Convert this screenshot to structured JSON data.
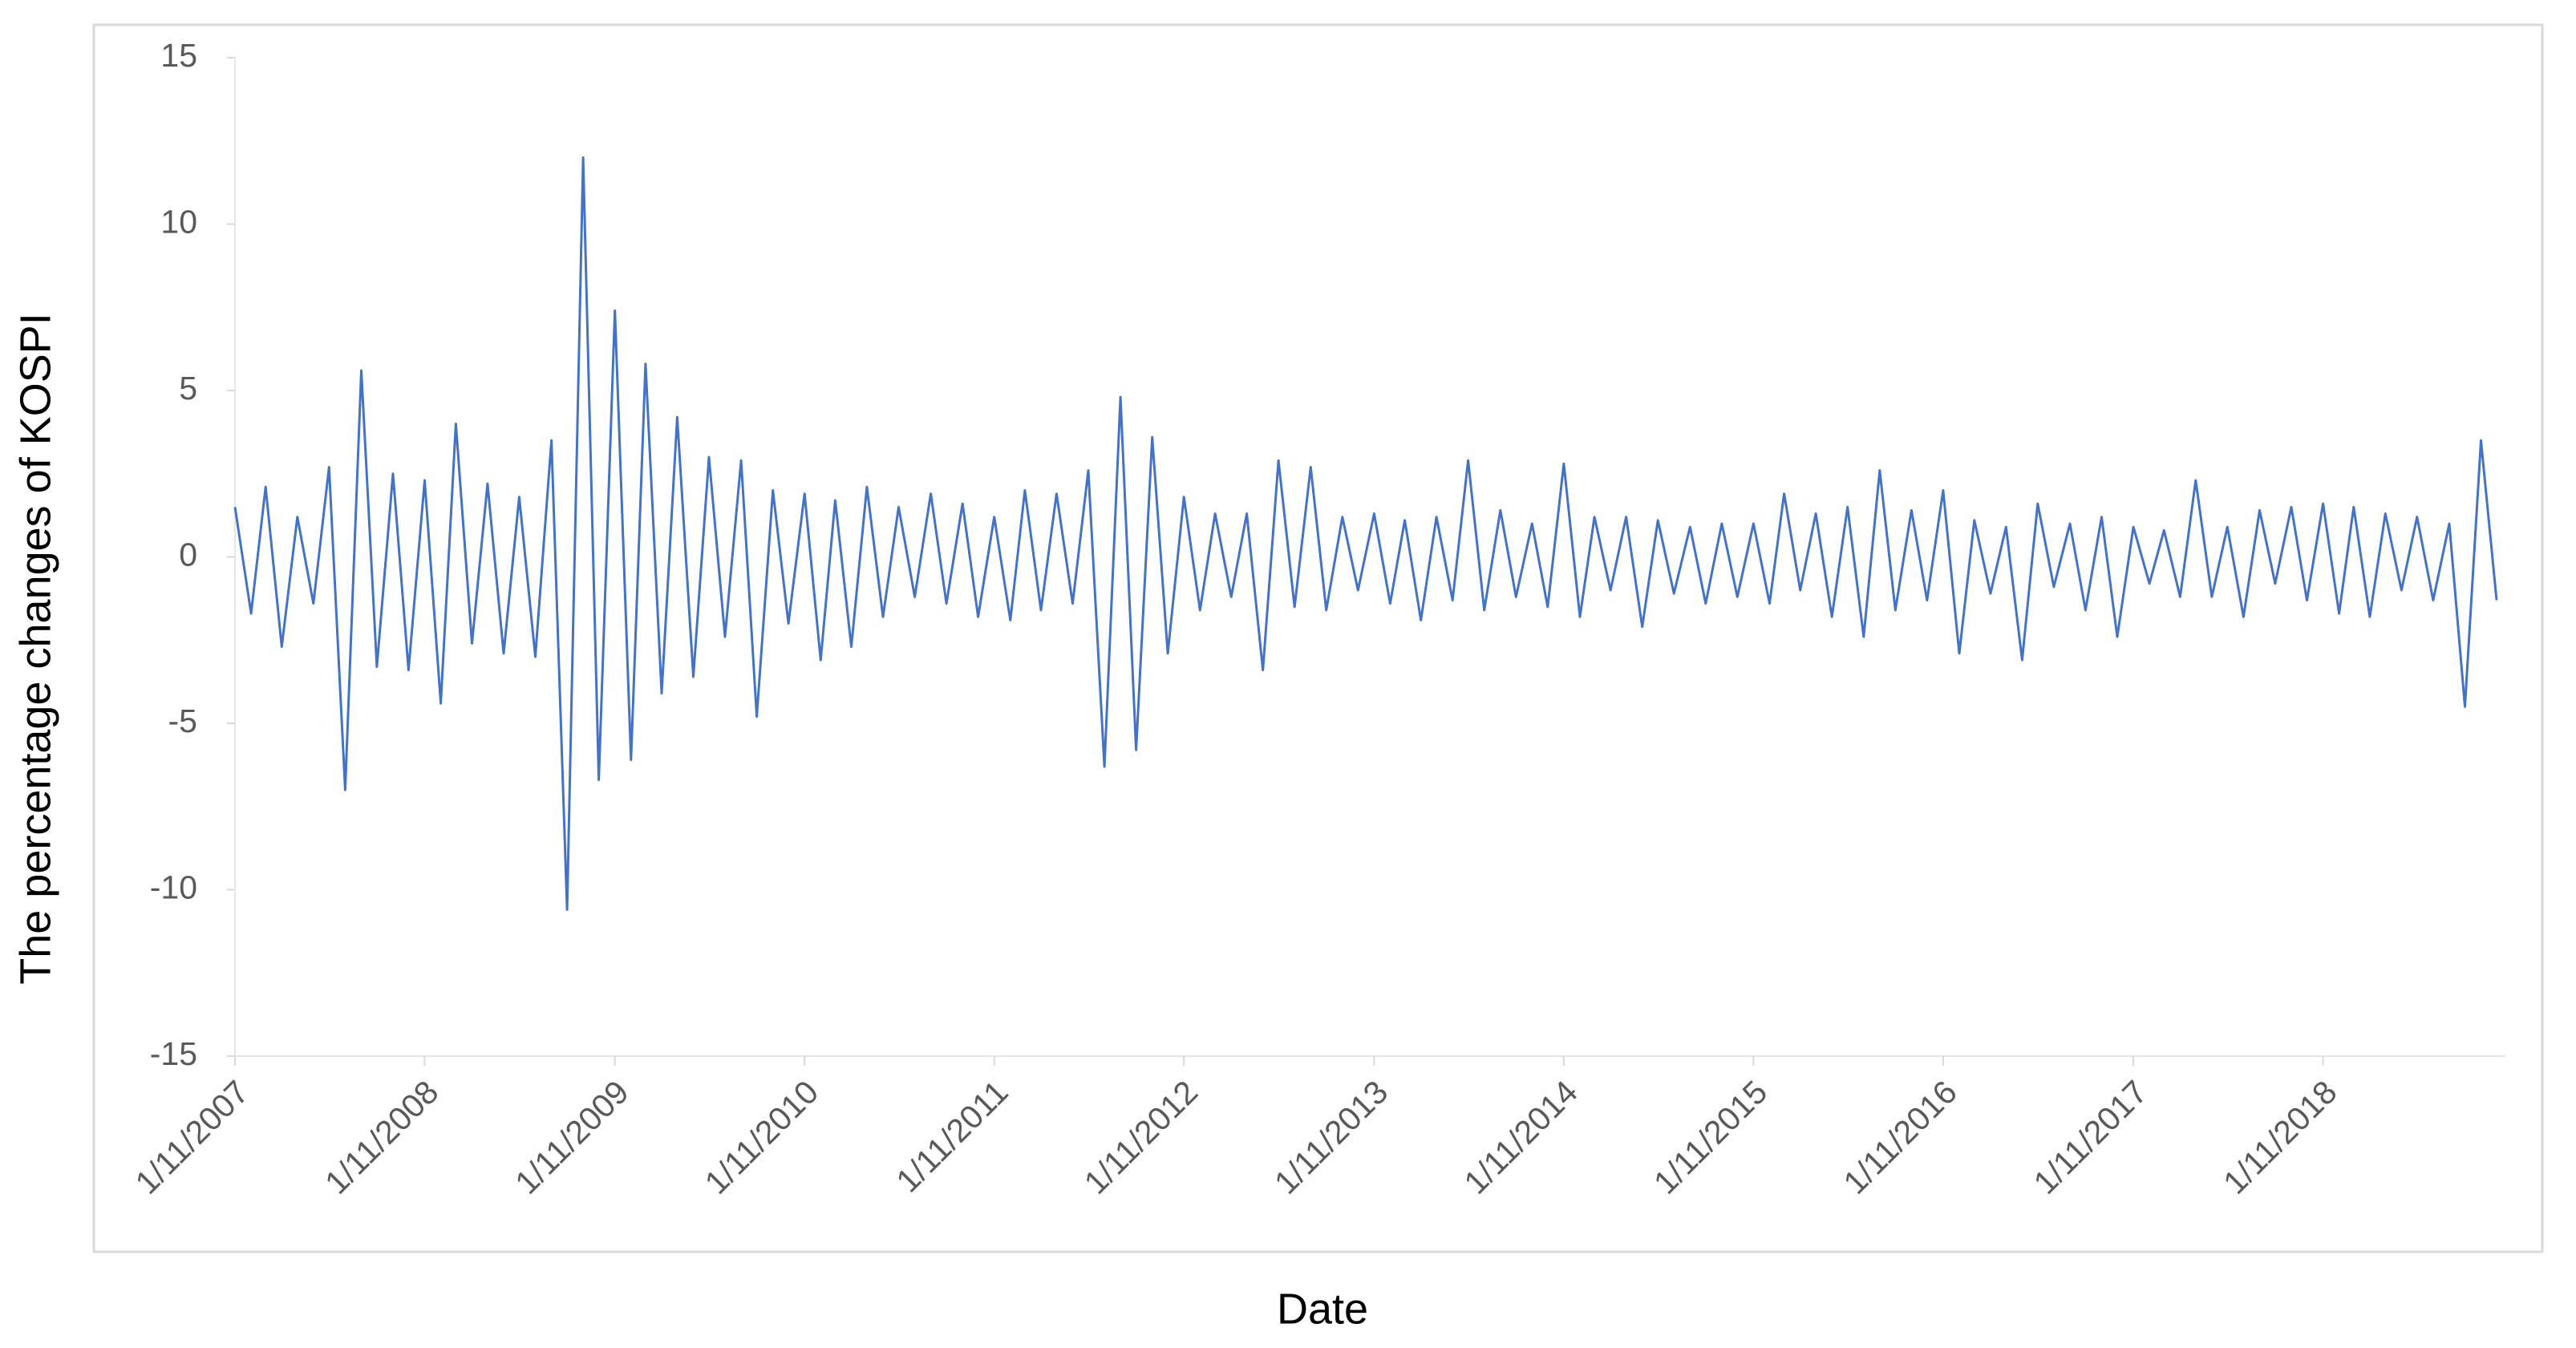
{
  "chart_data": {
    "type": "line",
    "y_label": "The percentage changes of KOSPI",
    "x_label": "Date",
    "color": "#4472c4",
    "x": [
      "2007-01-11",
      "2007-02-11",
      "2007-03-11",
      "2007-04-11",
      "2007-05-11",
      "2007-06-11",
      "2007-07-11",
      "2007-08-11",
      "2007-09-11",
      "2007-10-11",
      "2007-11-11",
      "2007-12-11",
      "2008-01-11",
      "2008-02-11",
      "2008-03-11",
      "2008-04-11",
      "2008-05-11",
      "2008-06-11",
      "2008-07-11",
      "2008-08-11",
      "2008-09-11",
      "2008-10-11",
      "2008-11-11",
      "2008-12-11",
      "2009-01-11",
      "2009-02-11",
      "2009-03-11",
      "2009-04-11",
      "2009-05-11",
      "2009-06-11",
      "2009-07-11",
      "2009-08-11",
      "2009-09-11",
      "2009-10-11",
      "2009-11-11",
      "2009-12-11",
      "2010-01-11",
      "2010-02-11",
      "2010-03-11",
      "2010-04-11",
      "2010-05-11",
      "2010-06-11",
      "2010-07-11",
      "2010-08-11",
      "2010-09-11",
      "2010-10-11",
      "2010-11-11",
      "2010-12-11",
      "2011-01-11",
      "2011-02-11",
      "2011-03-11",
      "2011-04-11",
      "2011-05-11",
      "2011-06-11",
      "2011-07-11",
      "2011-08-11",
      "2011-09-11",
      "2011-10-11",
      "2011-11-11",
      "2011-12-11",
      "2012-01-11",
      "2012-02-11",
      "2012-03-11",
      "2012-04-11",
      "2012-05-11",
      "2012-06-11",
      "2012-07-11",
      "2012-08-11",
      "2012-09-11",
      "2012-10-11",
      "2012-11-11",
      "2012-12-11",
      "2013-01-11",
      "2013-02-11",
      "2013-03-11",
      "2013-04-11",
      "2013-05-11",
      "2013-06-11",
      "2013-07-11",
      "2013-08-11",
      "2013-09-11",
      "2013-10-11",
      "2013-11-11",
      "2013-12-11",
      "2014-01-11",
      "2014-02-11",
      "2014-03-11",
      "2014-04-11",
      "2014-05-11",
      "2014-06-11",
      "2014-07-11",
      "2014-08-11",
      "2014-09-11",
      "2014-10-11",
      "2014-11-11",
      "2014-12-11",
      "2015-01-11",
      "2015-02-11",
      "2015-03-11",
      "2015-04-11",
      "2015-05-11",
      "2015-06-11",
      "2015-07-11",
      "2015-08-11",
      "2015-09-11",
      "2015-10-11",
      "2015-11-11",
      "2015-12-11",
      "2016-01-11",
      "2016-02-11",
      "2016-03-11",
      "2016-04-11",
      "2016-05-11",
      "2016-06-11",
      "2016-07-11",
      "2016-08-11",
      "2016-09-11",
      "2016-10-11",
      "2016-11-11",
      "2016-12-11",
      "2017-01-11",
      "2017-02-11",
      "2017-03-11",
      "2017-04-11",
      "2017-05-11",
      "2017-06-11",
      "2017-07-11",
      "2017-08-11",
      "2017-09-11",
      "2017-10-11",
      "2017-11-11",
      "2017-12-11",
      "2018-01-11",
      "2018-02-11",
      "2018-03-11",
      "2018-04-11",
      "2018-05-11",
      "2018-06-11",
      "2018-07-11",
      "2018-08-11",
      "2018-09-11",
      "2018-10-11",
      "2018-11-11",
      "2018-12-11"
    ],
    "values": [
      1.5,
      -1.7,
      2.1,
      -2.7,
      1.2,
      -1.4,
      2.7,
      -7.0,
      5.6,
      -3.3,
      2.5,
      -3.4,
      2.3,
      -4.4,
      4.0,
      -2.6,
      2.2,
      -2.9,
      1.8,
      -3.0,
      3.5,
      -10.6,
      12.0,
      -6.7,
      7.4,
      -6.1,
      5.8,
      -4.1,
      4.2,
      -3.6,
      3.0,
      -2.4,
      2.9,
      -4.8,
      2.0,
      -2.0,
      1.9,
      -3.1,
      1.7,
      -2.7,
      2.1,
      -1.8,
      1.5,
      -1.2,
      1.9,
      -1.4,
      1.6,
      -1.8,
      1.2,
      -1.9,
      2.0,
      -1.6,
      1.9,
      -1.4,
      2.6,
      -6.3,
      4.8,
      -5.8,
      3.6,
      -2.9,
      1.8,
      -1.6,
      1.3,
      -1.2,
      1.3,
      -3.4,
      2.9,
      -1.5,
      2.7,
      -1.6,
      1.2,
      -1.0,
      1.3,
      -1.4,
      1.1,
      -1.9,
      1.2,
      -1.3,
      2.9,
      -1.6,
      1.4,
      -1.2,
      1.0,
      -1.5,
      2.8,
      -1.8,
      1.2,
      -1.0,
      1.2,
      -2.1,
      1.1,
      -1.1,
      0.9,
      -1.4,
      1.0,
      -1.2,
      1.0,
      -1.4,
      1.9,
      -1.0,
      1.3,
      -1.8,
      1.5,
      -2.4,
      2.6,
      -1.6,
      1.4,
      -1.3,
      2.0,
      -2.9,
      1.1,
      -1.1,
      0.9,
      -3.1,
      1.6,
      -0.9,
      1.0,
      -1.6,
      1.2,
      -2.4,
      0.9,
      -0.8,
      0.8,
      -1.2,
      2.3,
      -1.2,
      0.9,
      -1.8,
      1.4,
      -0.8,
      1.5,
      -1.3,
      1.6,
      -1.7,
      1.5,
      -1.8,
      1.3,
      -1.0,
      1.2,
      -1.3,
      1.0,
      -4.5,
      3.5,
      -1.3
    ],
    "xlim": [
      "2007-01-11",
      "2018-12-28"
    ],
    "xticks": [
      {
        "value": "2007-01-11",
        "label": "1/11/2007"
      },
      {
        "value": "2008-01-11",
        "label": "1/11/2008"
      },
      {
        "value": "2009-01-11",
        "label": "1/11/2009"
      },
      {
        "value": "2010-01-11",
        "label": "1/11/2010"
      },
      {
        "value": "2011-01-11",
        "label": "1/11/2011"
      },
      {
        "value": "2012-01-11",
        "label": "1/11/2012"
      },
      {
        "value": "2013-01-11",
        "label": "1/11/2013"
      },
      {
        "value": "2014-01-11",
        "label": "1/11/2014"
      },
      {
        "value": "2015-01-11",
        "label": "1/11/2015"
      },
      {
        "value": "2016-01-11",
        "label": "1/11/2016"
      },
      {
        "value": "2017-01-11",
        "label": "1/11/2017"
      },
      {
        "value": "2018-01-11",
        "label": "1/11/2018"
      }
    ],
    "ylim": [
      -15,
      15
    ],
    "yticks": [
      -15,
      -10,
      -5,
      0,
      5,
      10,
      15
    ],
    "grid": false
  }
}
